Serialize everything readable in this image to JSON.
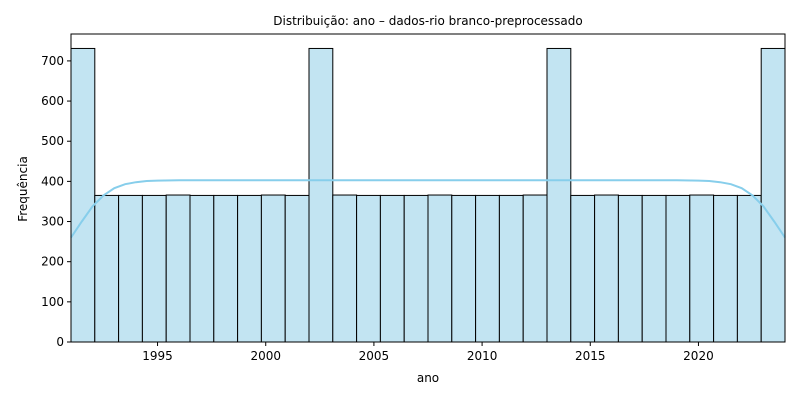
{
  "chart_data": {
    "type": "bar",
    "title": "Distribuição: ano – dados-rio branco-preprocessado",
    "xlabel": "ano",
    "ylabel": "Frequência",
    "xlim": [
      1991,
      2024
    ],
    "ylim": [
      0,
      767
    ],
    "x_ticks": [
      1995,
      2000,
      2005,
      2010,
      2015,
      2020
    ],
    "y_ticks": [
      0,
      100,
      200,
      300,
      400,
      500,
      600,
      700
    ],
    "bin_edges": [
      1991.0,
      1992.1,
      1993.2,
      1994.3,
      1995.4,
      1996.5,
      1997.6,
      1998.7,
      1999.8,
      2000.9,
      2002.0,
      2003.1,
      2004.2,
      2005.3,
      2006.4,
      2007.5,
      2008.6,
      2009.7,
      2010.8,
      2011.9,
      2013.0,
      2014.1,
      2015.2,
      2016.3,
      2017.4,
      2018.5,
      2019.6,
      2020.7,
      2021.8,
      2022.9,
      2024.0
    ],
    "values": [
      731,
      365,
      365,
      365,
      366,
      365,
      365,
      365,
      366,
      365,
      731,
      366,
      365,
      365,
      365,
      366,
      365,
      365,
      365,
      366,
      731,
      365,
      366,
      365,
      365,
      365,
      366,
      365,
      365,
      731
    ],
    "kde": {
      "x": [
        1991.0,
        1991.5,
        1992.0,
        1992.5,
        1993.0,
        1993.5,
        1994.0,
        1994.5,
        1995.0,
        1996.0,
        1997.0,
        2000.0,
        2005.0,
        2010.0,
        2015.0,
        2019.0,
        2020.0,
        2020.5,
        2021.0,
        2021.5,
        2022.0,
        2022.5,
        2023.0,
        2023.5,
        2024.0
      ],
      "y": [
        260,
        300,
        338,
        365,
        383,
        393,
        398,
        401,
        402,
        403,
        403,
        403,
        403,
        403,
        403,
        403,
        402,
        401,
        398,
        393,
        383,
        365,
        338,
        300,
        260
      ]
    },
    "bar_fill": "#c2e4f2",
    "bar_edge": "#000000",
    "kde_color": "#87ceeb",
    "grid": false,
    "legend": "none"
  }
}
